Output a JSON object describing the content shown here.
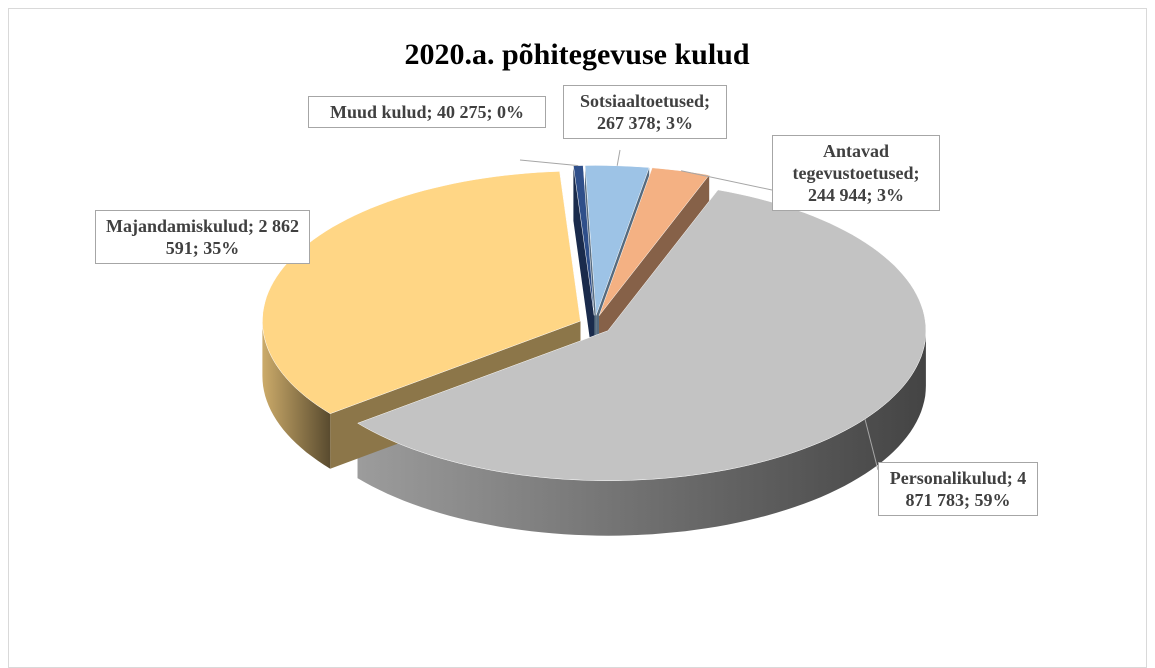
{
  "chart_data": {
    "type": "pie3d",
    "title": "2020.a. põhitegevuse kulud",
    "values": [
      267378,
      244944,
      4871783,
      2862591,
      40275
    ],
    "value_labels": [
      "Sotsiaaltoetused; 267 378; 3%",
      "Antavad tegevustoetused; 244 944; 3%",
      "Personalikulud; 4 871 783; 59%",
      "Majandamiskulud; 2 862 591; 35%",
      "Muud kulud; 40 275; 0%"
    ],
    "colors": [
      "#9dc3e6",
      "#f4b183",
      "#c3c3c3",
      "#ffd685",
      "#2f4f8a"
    ]
  }
}
